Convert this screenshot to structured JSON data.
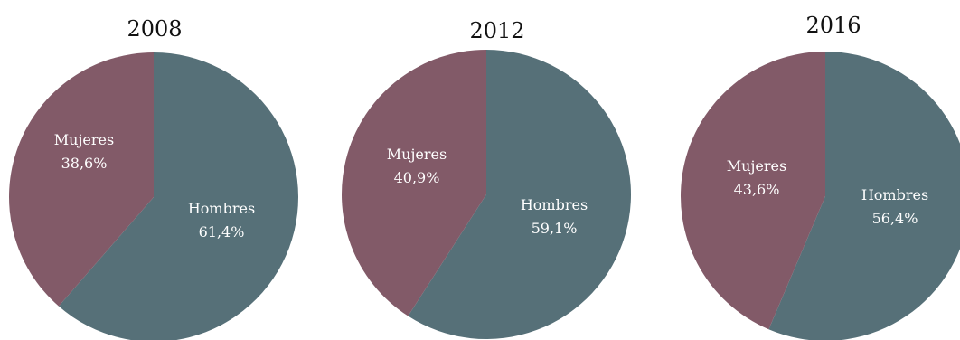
{
  "colors": {
    "Hombres": "#567078",
    "Mujeres": "#825a68"
  },
  "chart_data": [
    {
      "type": "pie",
      "title": "2008",
      "slices": [
        {
          "label": "Hombres",
          "value": 61.4,
          "value_label": "61,4%"
        },
        {
          "label": "Mujeres",
          "value": 38.6,
          "value_label": "38,6%"
        }
      ]
    },
    {
      "type": "pie",
      "title": "2012",
      "slices": [
        {
          "label": "Hombres",
          "value": 59.1,
          "value_label": "59,1%"
        },
        {
          "label": "Mujeres",
          "value": 40.9,
          "value_label": "40,9%"
        }
      ]
    },
    {
      "type": "pie",
      "title": "2016",
      "slices": [
        {
          "label": "Hombres",
          "value": 56.4,
          "value_label": "56,4%"
        },
        {
          "label": "Mujeres",
          "value": 43.6,
          "value_label": "43,6%"
        }
      ]
    }
  ]
}
